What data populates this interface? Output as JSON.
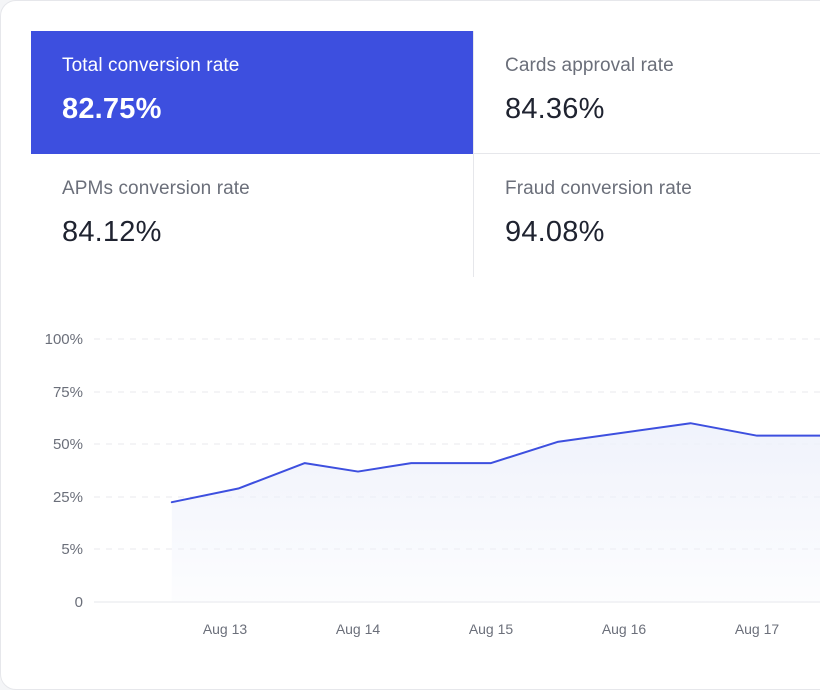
{
  "metrics": [
    {
      "label": "Total conversion rate",
      "value": "82.75%",
      "active": true
    },
    {
      "label": "Cards approval rate",
      "value": "84.36%",
      "active": false
    },
    {
      "label": "APMs conversion rate",
      "value": "84.12%",
      "active": false
    },
    {
      "label": "Fraud conversion rate",
      "value": "94.08%",
      "active": false
    }
  ],
  "colors": {
    "accent": "#3d4fdf",
    "line": "#3d4fdf",
    "area": "#eef1fb"
  },
  "chart_data": {
    "type": "area",
    "y_tick_labels": [
      "0",
      "5%",
      "25%",
      "50%",
      "75%",
      "100%"
    ],
    "x_tick_labels": [
      "Aug 13",
      "Aug 14",
      "Aug 15",
      "Aug 16",
      "Aug 17"
    ],
    "grid": true,
    "series": [
      {
        "points": [
          {
            "x": "Aug 12.6",
            "y": 23
          },
          {
            "x": "Aug 13.1",
            "y": 29
          },
          {
            "x": "Aug 13.6",
            "y": 41
          },
          {
            "x": "Aug 14.0",
            "y": 37
          },
          {
            "x": "Aug 14.4",
            "y": 41
          },
          {
            "x": "Aug 15.0",
            "y": 41
          },
          {
            "x": "Aug 15.5",
            "y": 51
          },
          {
            "x": "Aug 16.5",
            "y": 60
          },
          {
            "x": "Aug 17.0",
            "y": 54
          },
          {
            "x": "Aug 17.5",
            "y": 54
          }
        ]
      }
    ]
  }
}
